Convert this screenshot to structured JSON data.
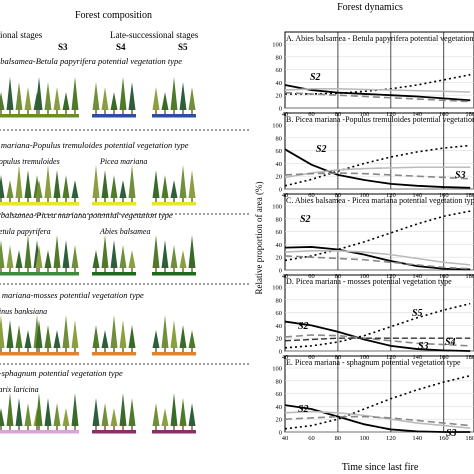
{
  "left": {
    "title": "Forest composition",
    "early_label": "Mid-successional stages",
    "late_label": "Late-successional stages",
    "stage_labels": [
      "S3",
      "S4",
      "S5"
    ],
    "panels": [
      {
        "title": "A. Abies balsamea-Betula papyrifera potential vegetation type",
        "annotations": [],
        "bar_colors": [
          "#6b8e23",
          "#2e4f9e",
          "#2e4f9e"
        ]
      },
      {
        "title": "B. Picea mariana-Populus tremuloides potential vegetation type",
        "annotations": [
          "Populus tremuloides",
          "Picea mariana"
        ],
        "bar_colors": [
          "#e6e62a",
          "#e6e62a",
          "#e6e62a"
        ]
      },
      {
        "title": "C. Abies balsamea-Picea mariana potential vegetation type",
        "annotations": [
          "Betula papyrifera",
          "Abies balsamea"
        ],
        "bar_colors": [
          "#3c8c3c",
          "#1e6b1e",
          "#1e6b1e"
        ]
      },
      {
        "title": "D. Picea mariana-mosses potential vegetation type",
        "annotations": [
          "Pinus banksiana"
        ],
        "bar_colors": [
          "#e6822a",
          "#e6822a",
          "#e6822a"
        ]
      },
      {
        "title": "E. Picea-sphagnum potential vegetation type",
        "annotations": [
          "Larix laricina"
        ],
        "bar_colors": [
          "#d7a6d7",
          "#8a2e6a",
          "#8a2e6a"
        ]
      }
    ]
  },
  "right": {
    "title": "Forest dynamics",
    "ylabel": "Relative proportion of area (%)",
    "xlabel": "Time since last fire",
    "xticks": [
      "40",
      "60",
      "80",
      "100",
      "120",
      "140",
      "160",
      "180"
    ],
    "yticks": [
      "0",
      "20",
      "40",
      "60",
      "80",
      "100"
    ],
    "panels": [
      {
        "title": "A. Abies balsamea - Betula papyrifera potential vegetation type",
        "labels": [
          "S2"
        ]
      },
      {
        "title": "B. Picea mariana -Populus tremuloides potential vegetation type",
        "labels": [
          "S2",
          "S3"
        ]
      },
      {
        "title": "C. Abies balsamea - Picea mariana potential vegetation type",
        "labels": [
          "S2"
        ]
      },
      {
        "title": "D. Picea mariana - mosses potential vegetation type",
        "labels": [
          "S2",
          "S5",
          "S3",
          "S4"
        ]
      },
      {
        "title": "E. Picea mariana - sphagnum potential vegetation type",
        "labels": [
          "S2",
          "S3"
        ]
      }
    ]
  },
  "chart_data": [
    {
      "type": "line",
      "title": "A. Abies balsamea - Betula papyrifera potential vegetation type",
      "xlabel": "Time since last fire",
      "ylabel": "Relative proportion of area (%)",
      "xlim": [
        40,
        180
      ],
      "ylim": [
        0,
        100
      ],
      "x": [
        40,
        60,
        80,
        100,
        120,
        140,
        160,
        180
      ],
      "series": [
        {
          "name": "S2",
          "style": "solid-black",
          "values": [
            36,
            28,
            24,
            22,
            20,
            18,
            15,
            12
          ]
        },
        {
          "name": "",
          "style": "dotted-black",
          "values": [
            22,
            22,
            23,
            26,
            30,
            36,
            44,
            52
          ]
        },
        {
          "name": "",
          "style": "solid-gray",
          "values": [
            28,
            30,
            30,
            29,
            28,
            27,
            26,
            25
          ]
        },
        {
          "name": "",
          "style": "dashed-gray",
          "values": [
            24,
            22,
            20,
            18,
            16,
            14,
            12,
            10
          ]
        }
      ]
    },
    {
      "type": "line",
      "title": "B. Picea mariana -Populus tremuloides potential vegetation type",
      "xlabel": "Time since last fire",
      "ylabel": "Relative proportion of area (%)",
      "xlim": [
        40,
        180
      ],
      "ylim": [
        0,
        100
      ],
      "x": [
        40,
        60,
        80,
        100,
        120,
        140,
        160,
        180
      ],
      "series": [
        {
          "name": "S2",
          "style": "solid-black",
          "values": [
            62,
            38,
            22,
            14,
            8,
            5,
            3,
            2
          ]
        },
        {
          "name": "",
          "style": "dotted-black",
          "values": [
            5,
            15,
            28,
            40,
            50,
            58,
            64,
            68
          ]
        },
        {
          "name": "",
          "style": "solid-gray",
          "values": [
            18,
            25,
            30,
            32,
            33,
            34,
            34,
            34
          ]
        },
        {
          "name": "S3",
          "style": "dashed-gray",
          "values": [
            22,
            24,
            25,
            24,
            22,
            20,
            18,
            16
          ]
        }
      ]
    },
    {
      "type": "line",
      "title": "C. Abies balsamea - Picea mariana potential vegetation type",
      "xlabel": "Time since last fire",
      "ylabel": "Relative proportion of area (%)",
      "xlim": [
        40,
        180
      ],
      "ylim": [
        0,
        100
      ],
      "x": [
        40,
        60,
        80,
        100,
        120,
        140,
        160,
        180
      ],
      "series": [
        {
          "name": "S2",
          "style": "solid-black",
          "values": [
            35,
            36,
            32,
            24,
            14,
            6,
            2,
            1
          ]
        },
        {
          "name": "",
          "style": "dotted-black",
          "values": [
            15,
            22,
            32,
            44,
            58,
            72,
            84,
            92
          ]
        },
        {
          "name": "",
          "style": "solid-gray",
          "values": [
            28,
            30,
            30,
            28,
            24,
            18,
            12,
            8
          ]
        },
        {
          "name": "",
          "style": "dashed-gray",
          "values": [
            22,
            20,
            18,
            16,
            12,
            8,
            4,
            2
          ]
        }
      ]
    },
    {
      "type": "line",
      "title": "D. Picea mariana - mosses potential vegetation type",
      "xlabel": "Time since last fire",
      "ylabel": "Relative proportion of area (%)",
      "xlim": [
        40,
        180
      ],
      "ylim": [
        0,
        100
      ],
      "x": [
        40,
        60,
        80,
        100,
        120,
        140,
        160,
        180
      ],
      "series": [
        {
          "name": "S2",
          "style": "solid-black",
          "values": [
            46,
            40,
            30,
            18,
            8,
            3,
            1,
            0
          ]
        },
        {
          "name": "S5",
          "style": "dotted-black",
          "values": [
            5,
            8,
            14,
            24,
            38,
            52,
            64,
            74
          ]
        },
        {
          "name": "S3",
          "style": "dashed-gray",
          "values": [
            22,
            25,
            24,
            20,
            16,
            12,
            10,
            8
          ]
        },
        {
          "name": "S4",
          "style": "dashed-black",
          "values": [
            16,
            18,
            20,
            20,
            20,
            20,
            20,
            20
          ]
        }
      ]
    },
    {
      "type": "line",
      "title": "E. Picea mariana - sphagnum potential vegetation type",
      "xlabel": "Time since last fire",
      "ylabel": "Relative proportion of area (%)",
      "xlim": [
        40,
        180
      ],
      "ylim": [
        0,
        100
      ],
      "x": [
        40,
        60,
        80,
        100,
        120,
        140,
        160,
        180
      ],
      "series": [
        {
          "name": "S2",
          "style": "solid-black",
          "values": [
            42,
            36,
            24,
            12,
            4,
            1,
            0,
            0
          ]
        },
        {
          "name": "",
          "style": "dotted-black",
          "values": [
            5,
            10,
            20,
            36,
            52,
            66,
            78,
            88
          ]
        },
        {
          "name": "",
          "style": "solid-gray",
          "values": [
            30,
            32,
            30,
            26,
            20,
            14,
            10,
            6
          ]
        },
        {
          "name": "S3",
          "style": "dashed-gray",
          "values": [
            20,
            22,
            24,
            24,
            22,
            18,
            14,
            10
          ]
        }
      ]
    }
  ]
}
